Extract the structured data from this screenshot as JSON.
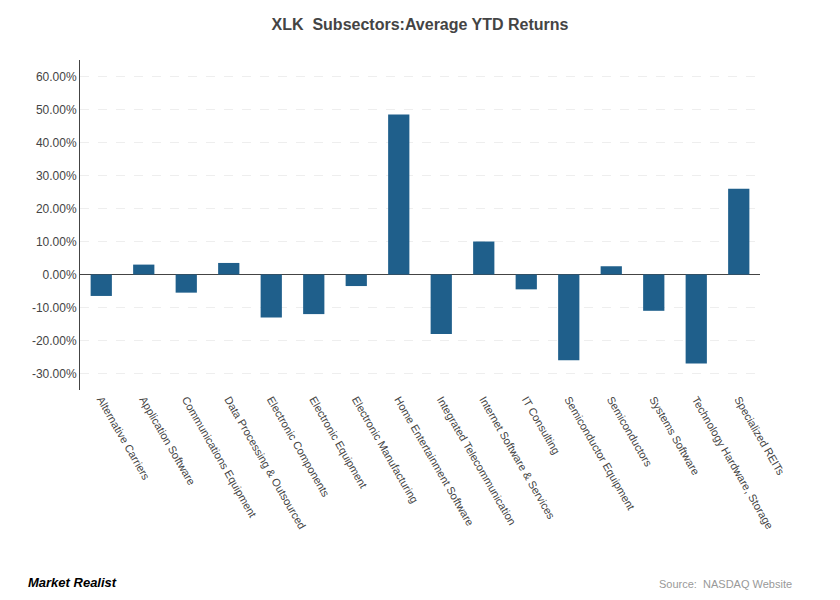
{
  "chart_data": {
    "type": "bar",
    "title": "XLK  Subsectors:Average YTD Returns",
    "categories": [
      "Alternative Carriers",
      "Application Software",
      "Communications Equipment",
      "Data Processing & Outsourced",
      "Electronic Components",
      "Electronic Equipment",
      "Electronic Manufacturing",
      "Home Entertainment Software",
      "Integrated Telecommunication",
      "Internet Software & Services",
      "IT Consulting",
      "Semiconductor Equipment",
      "Semiconductors",
      "Systems Software",
      "Technology Hardware, Storage",
      "Specialized REITs"
    ],
    "values": [
      -6.5,
      3.0,
      -5.5,
      3.5,
      -13.0,
      -12.0,
      -3.5,
      48.5,
      -18.0,
      10.0,
      -4.5,
      -26.0,
      2.5,
      -11.0,
      -27.0,
      26.0
    ],
    "color": "#1F5F8B",
    "ylim": [
      -35,
      65
    ],
    "yticks": [
      {
        "value": -30,
        "label": "-30.00%"
      },
      {
        "value": -20,
        "label": "-20.00%"
      },
      {
        "value": -10,
        "label": "-10.00%"
      },
      {
        "value": 0,
        "label": "0.00%"
      },
      {
        "value": 10,
        "label": "10.00%"
      },
      {
        "value": 20,
        "label": "20.00%"
      },
      {
        "value": 30,
        "label": "30.00%"
      },
      {
        "value": 40,
        "label": "40.00%"
      },
      {
        "value": 50,
        "label": "50.00%"
      },
      {
        "value": 60,
        "label": "60.00%"
      }
    ],
    "grid": true,
    "annotations": [
      "Market Realist",
      "Source:  NASDAQ Website"
    ]
  }
}
